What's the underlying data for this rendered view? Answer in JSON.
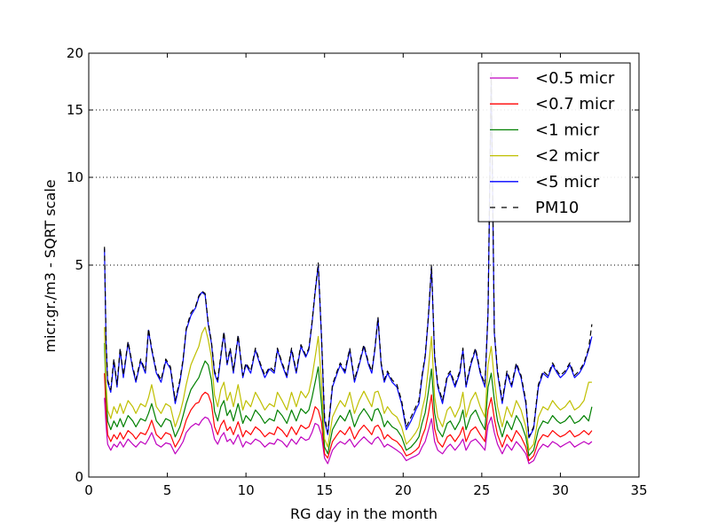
{
  "chart_data": {
    "type": "line",
    "title": "",
    "xlabel": "RG day in the month",
    "ylabel": "micr.gr./m3 - SQRT scale",
    "xlim": [
      0,
      35
    ],
    "ylim": [
      0,
      20
    ],
    "y_scale": "sqrt",
    "x_ticks": [
      0,
      5,
      10,
      15,
      20,
      25,
      30,
      35
    ],
    "x_tick_labels": [
      "0",
      "5",
      "10",
      "15",
      "20",
      "25",
      "30",
      "35"
    ],
    "y_ticks": [
      0,
      5,
      10,
      15,
      20
    ],
    "y_tick_labels": [
      "0",
      "5",
      "10",
      "15",
      "20"
    ],
    "grid": "y-dotted",
    "legend_position": "top-right",
    "x": [
      1.0,
      1.1,
      1.2,
      1.4,
      1.6,
      1.8,
      2.0,
      2.2,
      2.5,
      2.8,
      3.0,
      3.3,
      3.6,
      3.8,
      4.0,
      4.3,
      4.6,
      4.9,
      5.2,
      5.5,
      5.8,
      6.0,
      6.2,
      6.5,
      6.8,
      7.0,
      7.2,
      7.4,
      7.6,
      7.8,
      8.0,
      8.2,
      8.4,
      8.6,
      8.8,
      9.0,
      9.2,
      9.5,
      9.8,
      10.0,
      10.3,
      10.6,
      10.9,
      11.2,
      11.5,
      11.8,
      12.0,
      12.3,
      12.6,
      12.9,
      13.2,
      13.5,
      13.8,
      14.0,
      14.2,
      14.4,
      14.6,
      14.8,
      15.0,
      15.2,
      15.5,
      15.8,
      16.0,
      16.3,
      16.6,
      16.9,
      17.2,
      17.5,
      17.8,
      18.0,
      18.2,
      18.4,
      18.6,
      18.8,
      19.0,
      19.3,
      19.6,
      19.9,
      20.2,
      20.5,
      20.8,
      21.0,
      21.2,
      21.4,
      21.6,
      21.8,
      22.0,
      22.2,
      22.5,
      22.8,
      23.0,
      23.3,
      23.6,
      23.8,
      24.0,
      24.3,
      24.6,
      24.9,
      25.2,
      25.4,
      25.6,
      25.8,
      26.0,
      26.3,
      26.6,
      26.9,
      27.2,
      27.5,
      27.8,
      28.0,
      28.3,
      28.6,
      28.9,
      29.2,
      29.5,
      29.8,
      30.0,
      30.3,
      30.6,
      30.9,
      31.2,
      31.5,
      31.8,
      32.0
    ],
    "series": [
      {
        "name": "<0.5 micr",
        "color": "#bf00bf",
        "style": "solid",
        "values": [
          0.7,
          0.3,
          0.12,
          0.08,
          0.12,
          0.1,
          0.14,
          0.1,
          0.16,
          0.12,
          0.1,
          0.14,
          0.12,
          0.16,
          0.22,
          0.12,
          0.1,
          0.13,
          0.12,
          0.06,
          0.1,
          0.14,
          0.22,
          0.28,
          0.32,
          0.3,
          0.36,
          0.4,
          0.38,
          0.3,
          0.16,
          0.12,
          0.18,
          0.22,
          0.14,
          0.16,
          0.12,
          0.2,
          0.1,
          0.14,
          0.12,
          0.16,
          0.14,
          0.1,
          0.13,
          0.12,
          0.16,
          0.14,
          0.1,
          0.16,
          0.12,
          0.18,
          0.15,
          0.16,
          0.22,
          0.32,
          0.3,
          0.2,
          0.04,
          0.02,
          0.08,
          0.12,
          0.14,
          0.12,
          0.16,
          0.1,
          0.14,
          0.18,
          0.14,
          0.12,
          0.16,
          0.18,
          0.14,
          0.1,
          0.12,
          0.1,
          0.08,
          0.06,
          0.03,
          0.04,
          0.05,
          0.06,
          0.1,
          0.14,
          0.24,
          0.38,
          0.14,
          0.08,
          0.06,
          0.1,
          0.12,
          0.08,
          0.12,
          0.16,
          0.08,
          0.14,
          0.16,
          0.12,
          0.08,
          0.3,
          0.4,
          0.22,
          0.12,
          0.06,
          0.12,
          0.08,
          0.14,
          0.1,
          0.06,
          0.02,
          0.03,
          0.08,
          0.12,
          0.1,
          0.14,
          0.12,
          0.1,
          0.12,
          0.14,
          0.1,
          0.12,
          0.14,
          0.12,
          0.14
        ]
      },
      {
        "name": "<0.7 micr",
        "color": "#ff0000",
        "style": "solid",
        "values": [
          1.2,
          0.5,
          0.2,
          0.14,
          0.2,
          0.16,
          0.22,
          0.16,
          0.24,
          0.2,
          0.16,
          0.22,
          0.2,
          0.26,
          0.36,
          0.2,
          0.16,
          0.22,
          0.2,
          0.1,
          0.16,
          0.24,
          0.36,
          0.5,
          0.6,
          0.62,
          0.74,
          0.8,
          0.76,
          0.6,
          0.28,
          0.2,
          0.3,
          0.36,
          0.24,
          0.28,
          0.2,
          0.34,
          0.18,
          0.24,
          0.2,
          0.28,
          0.24,
          0.18,
          0.22,
          0.2,
          0.28,
          0.24,
          0.18,
          0.28,
          0.2,
          0.3,
          0.26,
          0.28,
          0.38,
          0.55,
          0.5,
          0.34,
          0.06,
          0.04,
          0.14,
          0.2,
          0.24,
          0.2,
          0.28,
          0.16,
          0.24,
          0.3,
          0.24,
          0.2,
          0.28,
          0.3,
          0.24,
          0.16,
          0.2,
          0.16,
          0.14,
          0.1,
          0.05,
          0.06,
          0.08,
          0.1,
          0.18,
          0.26,
          0.44,
          0.75,
          0.26,
          0.14,
          0.1,
          0.18,
          0.2,
          0.14,
          0.2,
          0.28,
          0.14,
          0.24,
          0.28,
          0.2,
          0.14,
          0.5,
          0.7,
          0.38,
          0.2,
          0.1,
          0.2,
          0.14,
          0.24,
          0.18,
          0.1,
          0.03,
          0.05,
          0.14,
          0.2,
          0.18,
          0.24,
          0.2,
          0.18,
          0.2,
          0.24,
          0.18,
          0.2,
          0.24,
          0.2,
          0.24
        ]
      },
      {
        "name": "<1 micr",
        "color": "#008000",
        "style": "solid",
        "values": [
          2.0,
          0.8,
          0.35,
          0.25,
          0.35,
          0.28,
          0.38,
          0.28,
          0.42,
          0.35,
          0.28,
          0.38,
          0.35,
          0.45,
          0.6,
          0.35,
          0.28,
          0.38,
          0.35,
          0.18,
          0.28,
          0.42,
          0.6,
          0.85,
          1.0,
          1.1,
          1.3,
          1.5,
          1.4,
          1.05,
          0.48,
          0.35,
          0.55,
          0.65,
          0.42,
          0.5,
          0.35,
          0.6,
          0.32,
          0.42,
          0.35,
          0.5,
          0.42,
          0.32,
          0.38,
          0.35,
          0.5,
          0.42,
          0.32,
          0.5,
          0.35,
          0.52,
          0.45,
          0.5,
          0.7,
          1.0,
          1.35,
          0.6,
          0.1,
          0.06,
          0.25,
          0.35,
          0.42,
          0.35,
          0.5,
          0.28,
          0.42,
          0.52,
          0.42,
          0.35,
          0.5,
          0.52,
          0.42,
          0.28,
          0.35,
          0.28,
          0.25,
          0.18,
          0.08,
          0.1,
          0.14,
          0.18,
          0.32,
          0.46,
          0.8,
          1.3,
          0.46,
          0.25,
          0.18,
          0.32,
          0.35,
          0.25,
          0.35,
          0.5,
          0.25,
          0.42,
          0.5,
          0.35,
          0.25,
          0.9,
          1.2,
          0.66,
          0.35,
          0.18,
          0.35,
          0.25,
          0.42,
          0.32,
          0.18,
          0.05,
          0.08,
          0.25,
          0.35,
          0.32,
          0.42,
          0.35,
          0.32,
          0.35,
          0.42,
          0.32,
          0.35,
          0.42,
          0.35,
          0.55
        ]
      },
      {
        "name": "<2 micr",
        "color": "#bfbf00",
        "style": "solid",
        "values": [
          2.5,
          1.0,
          0.5,
          0.38,
          0.55,
          0.45,
          0.6,
          0.45,
          0.65,
          0.55,
          0.45,
          0.6,
          0.55,
          0.7,
          0.95,
          0.55,
          0.45,
          0.6,
          0.55,
          0.28,
          0.45,
          0.65,
          0.95,
          1.4,
          1.7,
          1.9,
          2.3,
          2.5,
          2.1,
          1.6,
          0.75,
          0.55,
          0.85,
          1.0,
          0.65,
          0.8,
          0.55,
          0.95,
          0.5,
          0.65,
          0.55,
          0.8,
          0.65,
          0.5,
          0.6,
          0.55,
          0.8,
          0.65,
          0.5,
          0.8,
          0.55,
          0.82,
          0.7,
          0.8,
          1.1,
          1.6,
          2.2,
          1.0,
          0.16,
          0.1,
          0.4,
          0.55,
          0.65,
          0.55,
          0.8,
          0.45,
          0.65,
          0.82,
          0.65,
          0.55,
          0.8,
          0.82,
          0.65,
          0.45,
          0.55,
          0.45,
          0.4,
          0.28,
          0.12,
          0.16,
          0.22,
          0.28,
          0.5,
          0.72,
          1.3,
          2.2,
          0.72,
          0.4,
          0.28,
          0.5,
          0.55,
          0.4,
          0.55,
          0.8,
          0.4,
          0.65,
          0.8,
          0.55,
          0.4,
          1.4,
          1.9,
          1.05,
          0.55,
          0.28,
          0.55,
          0.4,
          0.65,
          0.5,
          0.28,
          0.08,
          0.12,
          0.4,
          0.55,
          0.5,
          0.65,
          0.55,
          0.5,
          0.55,
          0.65,
          0.5,
          0.55,
          0.65,
          1.0,
          1.0
        ]
      },
      {
        "name": "<5 micr",
        "color": "#0000ff",
        "style": "solid",
        "values": [
          5.8,
          2.0,
          1.0,
          0.8,
          1.5,
          0.9,
          1.8,
          1.1,
          2.0,
          1.3,
          1.0,
          1.5,
          1.2,
          2.4,
          1.8,
          1.2,
          1.0,
          1.5,
          1.3,
          0.6,
          1.0,
          1.5,
          2.4,
          2.9,
          3.2,
          3.6,
          3.8,
          3.7,
          2.6,
          2.0,
          1.2,
          1.0,
          1.6,
          2.3,
          1.4,
          1.8,
          1.2,
          2.2,
          1.1,
          1.4,
          1.2,
          1.8,
          1.4,
          1.1,
          1.3,
          1.2,
          1.8,
          1.4,
          1.1,
          1.8,
          1.2,
          1.9,
          1.6,
          1.8,
          2.6,
          3.8,
          5.0,
          2.2,
          0.35,
          0.2,
          0.9,
          1.2,
          1.4,
          1.2,
          1.8,
          1.0,
          1.4,
          1.9,
          1.4,
          1.2,
          1.8,
          2.8,
          1.4,
          1.0,
          1.2,
          1.0,
          0.9,
          0.6,
          0.25,
          0.35,
          0.5,
          0.6,
          1.1,
          1.6,
          2.8,
          4.9,
          1.6,
          0.9,
          0.6,
          1.1,
          1.2,
          0.9,
          1.2,
          1.8,
          0.9,
          1.4,
          1.8,
          1.2,
          0.9,
          3.0,
          17.5,
          2.3,
          1.2,
          0.6,
          1.2,
          0.9,
          1.4,
          1.1,
          0.6,
          0.17,
          0.26,
          0.9,
          1.2,
          1.1,
          1.4,
          1.2,
          1.1,
          1.2,
          1.4,
          1.1,
          1.2,
          1.4,
          1.8,
          2.2
        ]
      },
      {
        "name": "PM10",
        "color": "#000000",
        "style": "dashed",
        "values": [
          5.9,
          2.1,
          1.05,
          0.85,
          1.55,
          0.95,
          1.85,
          1.15,
          2.05,
          1.35,
          1.05,
          1.55,
          1.25,
          2.45,
          1.85,
          1.25,
          1.05,
          1.55,
          1.35,
          0.65,
          1.05,
          1.55,
          2.45,
          3.0,
          3.25,
          3.65,
          3.85,
          3.75,
          2.65,
          2.05,
          1.25,
          1.05,
          1.65,
          2.35,
          1.45,
          1.85,
          1.25,
          2.25,
          1.15,
          1.45,
          1.25,
          1.85,
          1.45,
          1.15,
          1.35,
          1.25,
          1.85,
          1.45,
          1.15,
          1.85,
          1.25,
          1.95,
          1.65,
          1.85,
          2.65,
          3.85,
          5.1,
          2.25,
          0.4,
          0.22,
          0.95,
          1.25,
          1.45,
          1.25,
          1.85,
          1.05,
          1.45,
          1.95,
          1.45,
          1.25,
          1.85,
          2.85,
          1.45,
          1.05,
          1.25,
          1.05,
          0.95,
          0.65,
          0.28,
          0.4,
          0.55,
          0.65,
          1.15,
          1.65,
          2.85,
          5.0,
          1.65,
          0.95,
          0.65,
          1.15,
          1.25,
          0.95,
          1.25,
          1.85,
          0.95,
          1.45,
          1.85,
          1.25,
          0.95,
          3.05,
          18.2,
          2.35,
          1.25,
          0.65,
          1.25,
          0.95,
          1.45,
          1.15,
          0.65,
          0.18,
          0.28,
          0.95,
          1.25,
          1.15,
          1.45,
          1.25,
          1.15,
          1.25,
          1.45,
          1.15,
          1.25,
          1.45,
          1.85,
          2.6
        ]
      }
    ]
  }
}
